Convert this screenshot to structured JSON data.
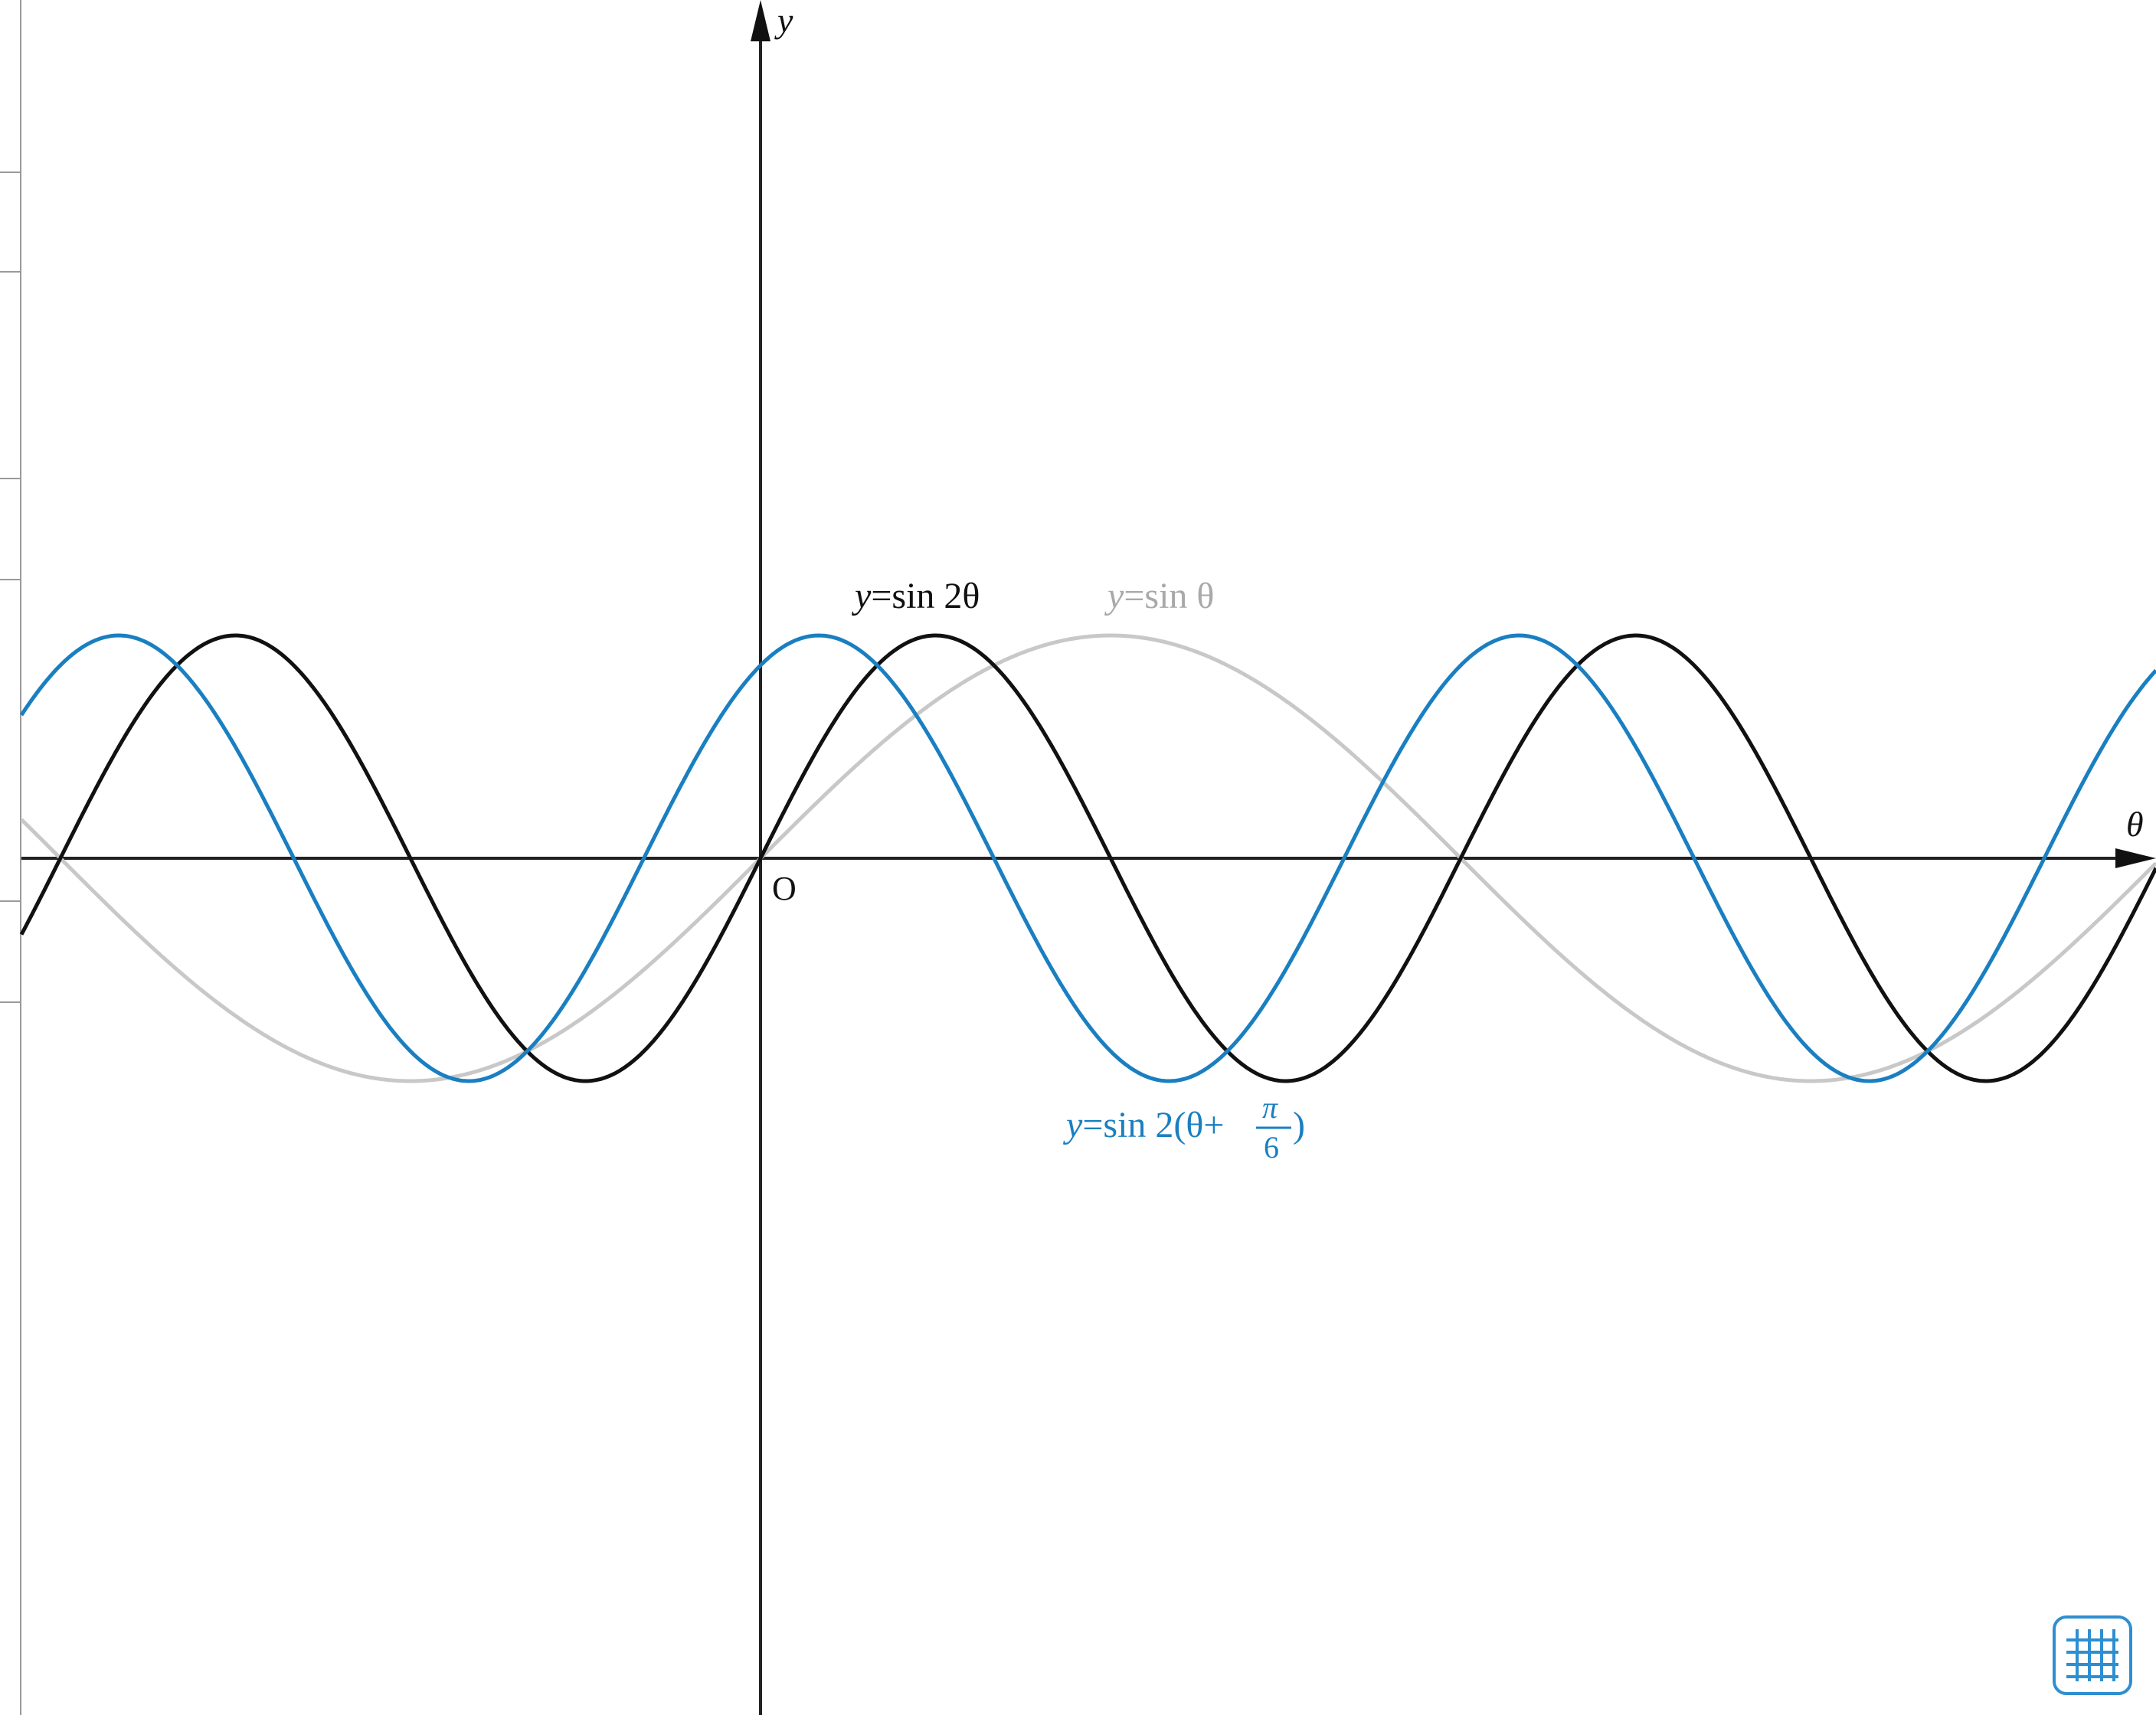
{
  "toolbar": {
    "grid_toggle_icon": "grid-icon",
    "accent_color": "#2e8fd0"
  },
  "chart_data": {
    "type": "line",
    "title": "",
    "xlabel": "θ",
    "ylabel": "y",
    "origin_label": "O",
    "grid": false,
    "xlim": [
      -3.31,
      6.28
    ],
    "ylim": [
      -3.85,
      3.85
    ],
    "x_units": "radians",
    "series": [
      {
        "name": "y=sin θ",
        "label_prefix": "y",
        "label_body": "=sin θ",
        "formula": "sin(x)",
        "color": "#c8c8c8"
      },
      {
        "name": "y=sin 2θ",
        "label_prefix": "y",
        "label_body": "=sin 2θ",
        "formula": "sin(2*x)",
        "color": "#111111"
      },
      {
        "name": "y=sin 2(θ+π/6)",
        "label_prefix": "y",
        "label_body": "=sin 2(θ+",
        "label_frac_num": "π",
        "label_frac_den": "6",
        "label_tail": ")",
        "formula": "sin(2*(x+pi/6))",
        "color": "#1a7fc1"
      }
    ]
  }
}
